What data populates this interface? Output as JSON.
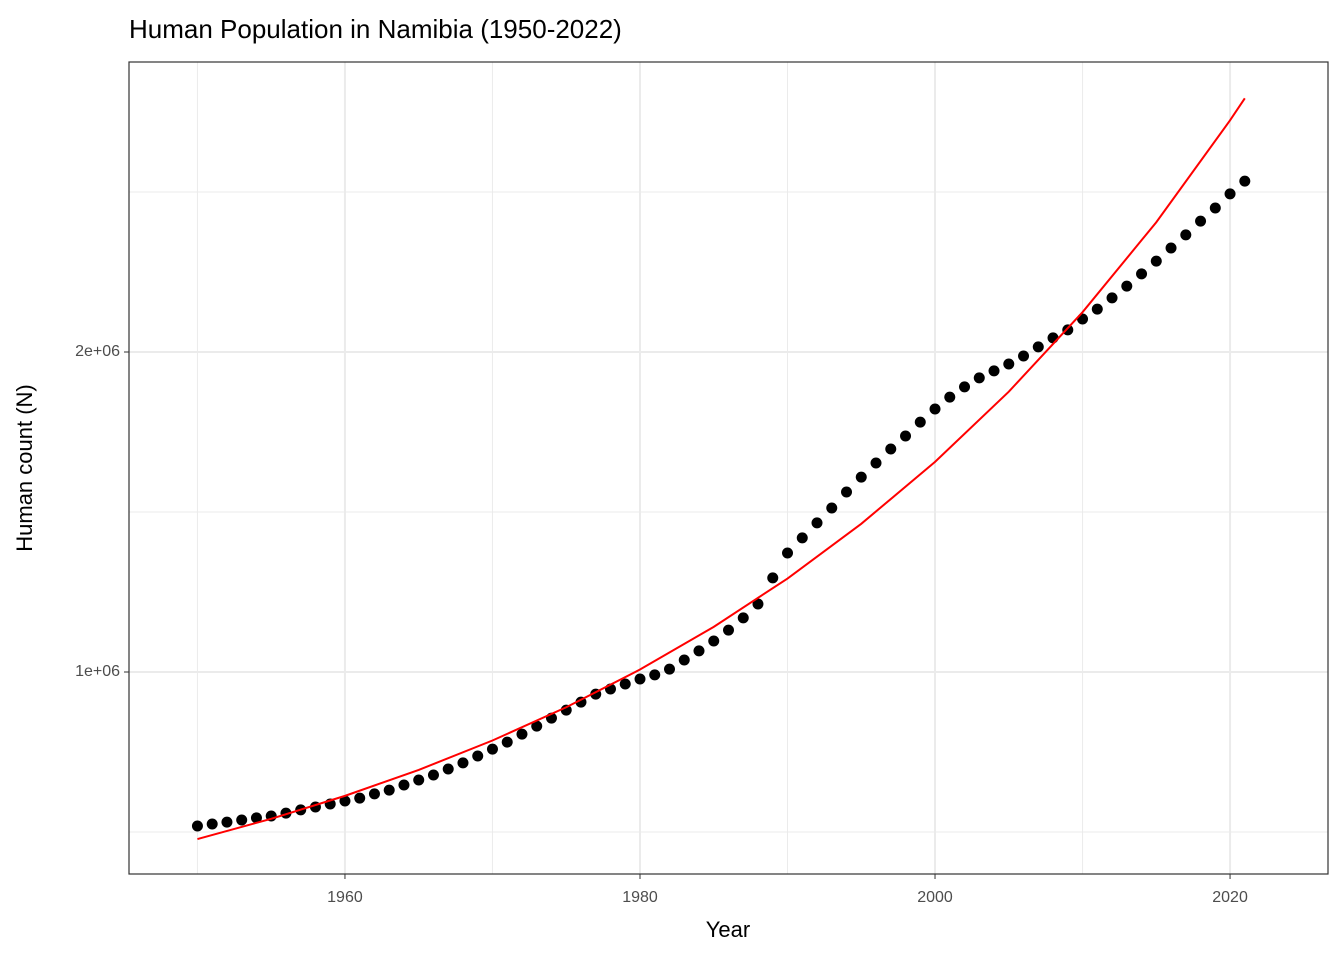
{
  "chart_data": {
    "type": "scatter",
    "title": "Human Population in Namibia (1950-2022)",
    "x_label": "Year",
    "y_label": "Human count (N)",
    "xlim": [
      1945.36,
      2026.64
    ],
    "ylim": [
      368750,
      2906250
    ],
    "xticks": [
      1960,
      1980,
      2000,
      2020
    ],
    "yticks": [
      {
        "value": 1000000,
        "label": "1e+06"
      },
      {
        "value": 2000000,
        "label": "2e+06"
      }
    ],
    "x_minor_ticks": [
      1950,
      1970,
      1990,
      2010
    ],
    "y_minor_ticks": [
      500000,
      1500000,
      2500000
    ],
    "grid": true,
    "series": [
      {
        "type": "scatter",
        "color": "#000000",
        "x": [
          1950,
          1951,
          1952,
          1953,
          1954,
          1955,
          1956,
          1957,
          1958,
          1959,
          1960,
          1961,
          1962,
          1963,
          1964,
          1965,
          1966,
          1967,
          1968,
          1969,
          1970,
          1971,
          1972,
          1973,
          1974,
          1975,
          1976,
          1977,
          1978,
          1979,
          1980,
          1981,
          1982,
          1983,
          1984,
          1985,
          1986,
          1987,
          1988,
          1989,
          1990,
          1991,
          1992,
          1993,
          1994,
          1995,
          1996,
          1997,
          1998,
          1999,
          2000,
          2001,
          2002,
          2003,
          2004,
          2005,
          2006,
          2007,
          2008,
          2009,
          2010,
          2011,
          2012,
          2013,
          2014,
          2015,
          2016,
          2017,
          2018,
          2019,
          2020,
          2021
        ],
        "values": [
          518750,
          525000,
          531000,
          537500,
          544000,
          550000,
          559000,
          569000,
          578000,
          587500,
          597000,
          606000,
          619000,
          631000,
          647000,
          662500,
          678000,
          697000,
          716000,
          737500,
          759000,
          781000,
          806000,
          831000,
          856000,
          881000,
          906000,
          931000,
          947000,
          962500,
          978000,
          991000,
          1009000,
          1037500,
          1066000,
          1097000,
          1131000,
          1169000,
          1212500,
          1294000,
          1372000,
          1419000,
          1466000,
          1512500,
          1562500,
          1609000,
          1653000,
          1697000,
          1737500,
          1781000,
          1822000,
          1859000,
          1891000,
          1919000,
          1941000,
          1962500,
          1987500,
          2016000,
          2044000,
          2069000,
          2103000,
          2134000,
          2169000,
          2206000,
          2244000,
          2284000,
          2325000,
          2366000,
          2409000,
          2450000,
          2494000,
          2534000
        ]
      },
      {
        "type": "line",
        "color": "#ff0000",
        "x": [
          1950,
          1955,
          1960,
          1965,
          1970,
          1975,
          1980,
          1985,
          1990,
          1995,
          2000,
          2005,
          2010,
          2015,
          2020,
          2021
        ],
        "values": [
          478000,
          541300,
          612900,
          694000,
          785900,
          889900,
          1007700,
          1141100,
          1292100,
          1463100,
          1656700,
          1876000,
          2124400,
          2405500,
          2723900,
          2792600
        ]
      }
    ]
  }
}
